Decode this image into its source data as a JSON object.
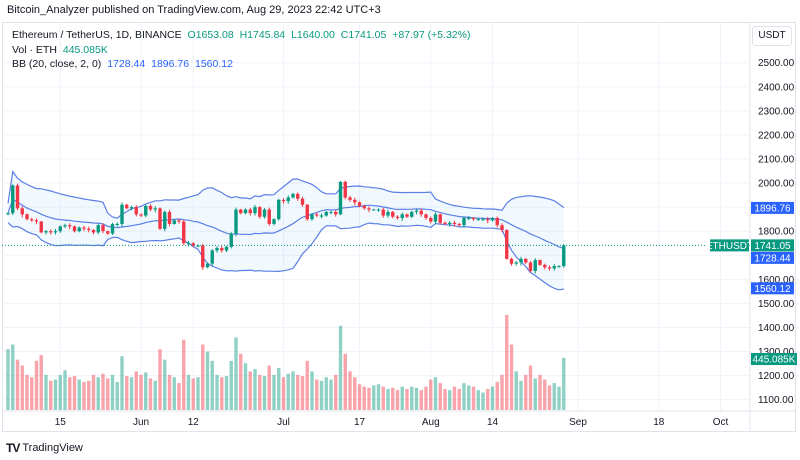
{
  "header": {
    "published": "Bitcoin_Analyzer published on TradingView.com, Aug 29, 2023 22:42 UTC+3"
  },
  "legend": {
    "symbol": "Ethereum / TetherUS, 1D, BINANCE",
    "open": "O1653.08",
    "high": "H1745.84",
    "low": "L1640.00",
    "close": "C1741.05",
    "change": "+87.97 (+5.32%)",
    "vol_label": "Vol · ETH",
    "vol_value": "445.085K",
    "bb_label": "BB (20, close, 2, 0)",
    "bb_basis": "1728.44",
    "bb_upper": "1896.76",
    "bb_lower": "1560.12"
  },
  "currency_button": "USDT",
  "price_labels": {
    "symbol_tag": "ETHUSDT",
    "last": "1741.05",
    "bb_upper": "1896.76",
    "bb_basis": "1728.44",
    "bb_lower": "1560.12",
    "volume": "445.085K"
  },
  "footer": {
    "logo_text": "TradingView"
  },
  "colors": {
    "up": "#089981",
    "down": "#f23645",
    "bb": "#5b7fe6",
    "bb_fill": "#2196f3",
    "label_blue": "#2962ff"
  },
  "chart_data": {
    "type": "candlestick",
    "interval": "1D",
    "start_date": "2023-05-04",
    "end_date": "2023-08-29",
    "ylim": [
      1050,
      2560
    ],
    "grid": true,
    "price_ticks": [
      "2500.00",
      "2400.00",
      "2300.00",
      "2200.00",
      "2100.00",
      "2000.00",
      "1800.00",
      "1600.00",
      "1500.00",
      "1400.00",
      "1300.00",
      "1200.00",
      "1100.00"
    ],
    "time_ticks": [
      {
        "label": "15",
        "date": "2023-05-15"
      },
      {
        "label": "Jun",
        "date": "2023-06-01"
      },
      {
        "label": "12",
        "date": "2023-06-12"
      },
      {
        "label": "Jul",
        "date": "2023-07-01"
      },
      {
        "label": "17",
        "date": "2023-07-17"
      },
      {
        "label": "Aug",
        "date": "2023-08-01"
      },
      {
        "label": "14",
        "date": "2023-08-14"
      },
      {
        "label": "Sep",
        "date": "2023-09-01"
      },
      {
        "label": "18",
        "date": "2023-09-18"
      },
      {
        "label": "Oct",
        "date": "2023-10-01"
      }
    ],
    "first_open": 1870,
    "close": [
      1875,
      1990,
      1895,
      1870,
      1850,
      1845,
      1840,
      1795,
      1800,
      1795,
      1800,
      1820,
      1825,
      1820,
      1800,
      1815,
      1810,
      1805,
      1795,
      1825,
      1800,
      1790,
      1830,
      1830,
      1910,
      1895,
      1900,
      1870,
      1865,
      1905,
      1890,
      1895,
      1810,
      1880,
      1830,
      1845,
      1840,
      1750,
      1750,
      1740,
      1740,
      1650,
      1665,
      1720,
      1730,
      1720,
      1735,
      1790,
      1890,
      1875,
      1890,
      1875,
      1900,
      1860,
      1890,
      1830,
      1850,
      1930,
      1925,
      1940,
      1955,
      1935,
      1910,
      1850,
      1870,
      1865,
      1865,
      1880,
      1880,
      1870,
      2005,
      1940,
      1930,
      1920,
      1905,
      1895,
      1890,
      1890,
      1890,
      1865,
      1880,
      1860,
      1855,
      1870,
      1860,
      1880,
      1885,
      1870,
      1855,
      1840,
      1870,
      1835,
      1830,
      1835,
      1830,
      1825,
      1855,
      1855,
      1850,
      1850,
      1850,
      1845,
      1855,
      1825,
      1805,
      1685,
      1665,
      1670,
      1685,
      1670,
      1635,
      1680,
      1660,
      1650,
      1645,
      1655,
      1655,
      1741.05
    ],
    "volume_k": [
      520,
      560,
      430,
      380,
      300,
      280,
      420,
      470,
      300,
      250,
      260,
      300,
      340,
      280,
      290,
      260,
      240,
      250,
      300,
      280,
      310,
      270,
      300,
      240,
      460,
      290,
      280,
      330,
      300,
      320,
      270,
      250,
      520,
      430,
      300,
      280,
      230,
      600,
      300,
      270,
      280,
      560,
      500,
      420,
      300,
      280,
      290,
      420,
      620,
      480,
      400,
      330,
      350,
      300,
      290,
      380,
      300,
      360,
      280,
      310,
      330,
      300,
      290,
      420,
      330,
      260,
      250,
      280,
      260,
      300,
      720,
      480,
      330,
      280,
      220,
      200,
      190,
      210,
      220,
      200,
      180,
      190,
      170,
      200,
      180,
      200,
      190,
      170,
      200,
      260,
      280,
      230,
      180,
      170,
      200,
      180,
      230,
      210,
      200,
      170,
      150,
      180,
      200,
      240,
      300,
      813,
      560,
      330,
      250,
      300,
      380,
      270,
      300,
      260,
      210,
      230,
      200,
      445.085
    ]
  }
}
